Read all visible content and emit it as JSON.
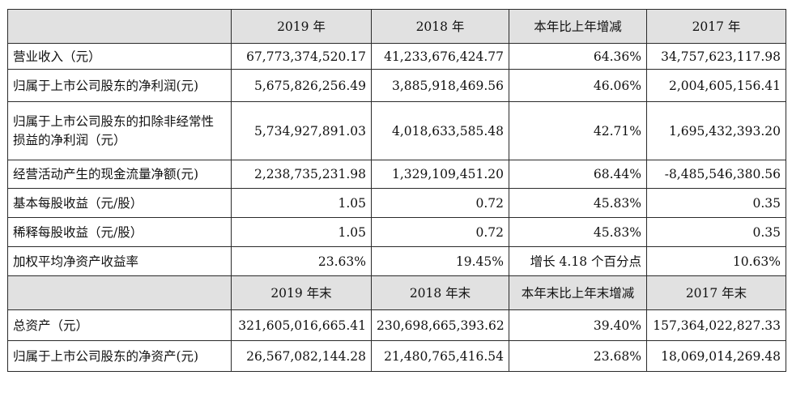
{
  "header1": {
    "cols": [
      "2019 年",
      "2018 年",
      "本年比上年增减",
      "2017 年"
    ]
  },
  "header2": {
    "cols": [
      "2019 年末",
      "2018 年末",
      "本年末比上年末增减",
      "2017 年末"
    ]
  },
  "rows": [
    {
      "label": "营业收入（元）",
      "v2019": "67,773,374,520.17",
      "v2018": "41,233,676,424.77",
      "change": "64.36%",
      "v2017": "34,757,623,117.98"
    },
    {
      "label": "归属于上市公司股东的净利润(元)",
      "v2019": "5,675,826,256.49",
      "v2018": "3,885,918,469.56",
      "change": "46.06%",
      "v2017": "2,004,605,156.41"
    },
    {
      "label": "归属于上市公司股东的扣除非经常性损益的净利润（元）",
      "v2019": "5,734,927,891.03",
      "v2018": "4,018,633,585.48",
      "change": "42.71%",
      "v2017": "1,695,432,393.20"
    },
    {
      "label": "经营活动产生的现金流量净额(元)",
      "v2019": "2,238,735,231.98",
      "v2018": "1,329,109,451.20",
      "change": "68.44%",
      "v2017": "-8,485,546,380.56"
    },
    {
      "label": "基本每股收益（元/股）",
      "v2019": "1.05",
      "v2018": "0.72",
      "change": "45.83%",
      "v2017": "0.35"
    },
    {
      "label": "稀释每股收益（元/股）",
      "v2019": "1.05",
      "v2018": "0.72",
      "change": "45.83%",
      "v2017": "0.35"
    },
    {
      "label": "加权平均净资产收益率",
      "v2019": "23.63%",
      "v2018": "19.45%",
      "change": "增长 4.18 个百分点",
      "v2017": "10.63%"
    }
  ],
  "rows2": [
    {
      "label": "总资产（元）",
      "v2019": "321,605,016,665.41",
      "v2018": "230,698,665,393.62",
      "change": "39.40%",
      "v2017": "157,364,022,827.33"
    },
    {
      "label": "归属于上市公司股东的净资产(元)",
      "v2019": "26,567,082,144.28",
      "v2018": "21,480,765,416.54",
      "change": "23.68%",
      "v2017": "18,069,014,269.48"
    }
  ]
}
